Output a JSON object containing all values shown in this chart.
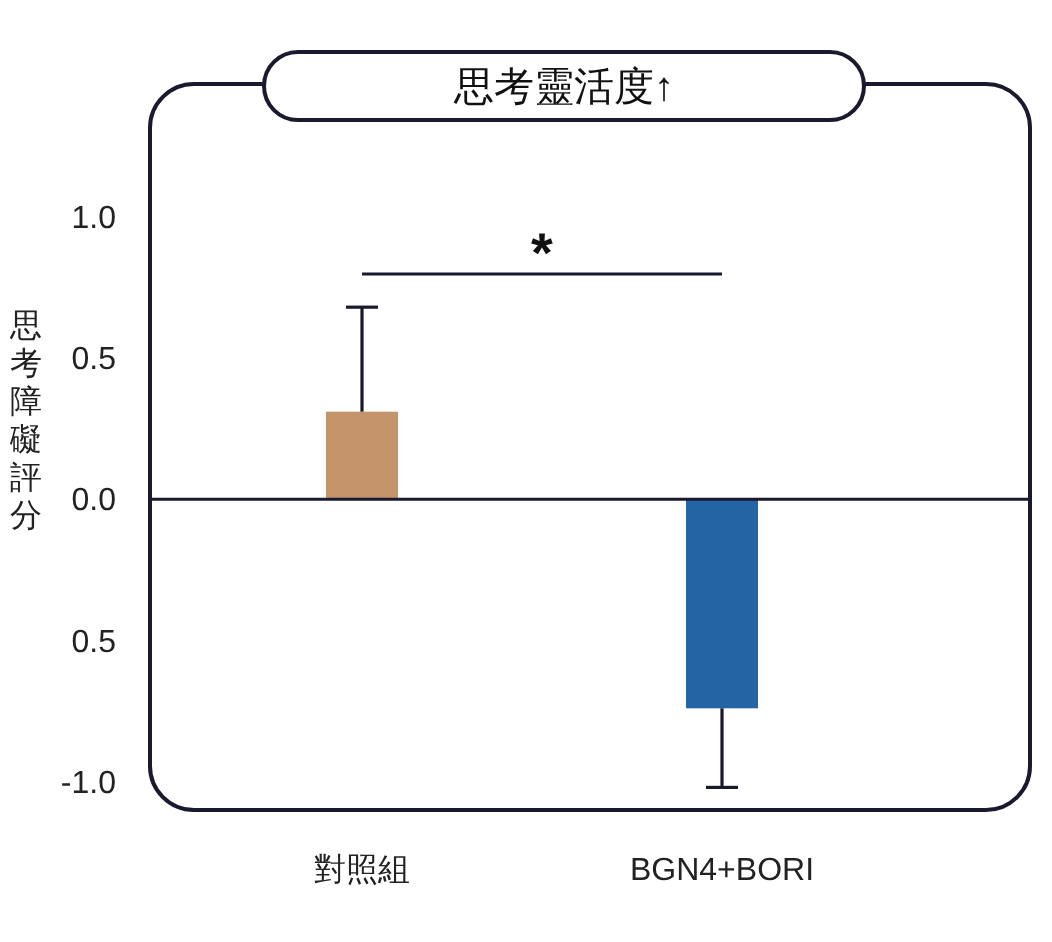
{
  "chart_data": {
    "type": "bar",
    "title": "思考靈活度↑",
    "ylabel": "思考障礙評分",
    "categories": [
      "對照組",
      "BGN4+BORI"
    ],
    "values": [
      0.31,
      -0.74
    ],
    "colors": [
      "#c4956b",
      "#2264a4"
    ],
    "errors": [
      [
        0.31,
        0.68
      ],
      [
        -1.02,
        -0.74
      ]
    ],
    "ylim": [
      -1.1,
      1.47
    ],
    "yticks": [
      {
        "value": 1,
        "label": "1.0"
      },
      0.5,
      {
        "value": 0,
        "label": "0.0"
      },
      {
        "value": -0.5,
        "label": "0.5"
      },
      {
        "value": -1,
        "label": "-1.0"
      }
    ],
    "annotations": [
      "*"
    ]
  }
}
